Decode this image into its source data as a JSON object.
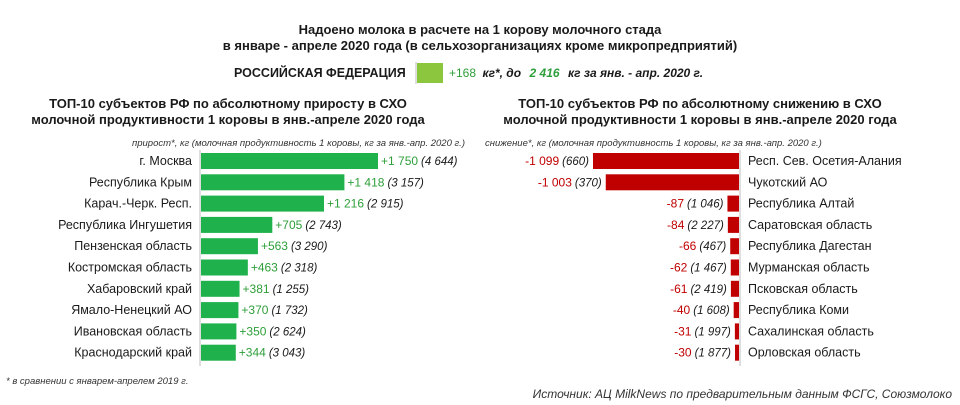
{
  "title_line1": "Надоено молока в расчете на 1 корову молочного стада",
  "title_line2": "в январе - апреле 2020 года (в сельхозорганизациях кроме микропредприятий)",
  "federation": {
    "label": "РОССИЙСКАЯ ФЕДЕРАЦИЯ",
    "growth": "+168",
    "growth_unit": "кг*, до",
    "total": "2 416",
    "total_suffix": "кг за янв. - апр. 2020 г.",
    "color": "#8cc63f"
  },
  "left_title_line1": "ТОП-10 субъектов РФ по абсолютному приросту в СХО",
  "left_title_line2": "молочной продуктивности 1 коровы в янв.-апреле 2020 года",
  "left_note": "прирост*, кг (молочная продуктивность 1 коровы, кг за янв.-апр. 2020 г.)",
  "right_title_line1": "ТОП-10 субъектов РФ по абсолютному снижению в СХО",
  "right_title_line2": "молочной продуктивности 1 коровы в янв.-апреле 2020 года",
  "right_note": "снижение*, кг (молочная продуктивность 1 коровы, кг за янв.-апр. 2020 г.)",
  "footnote": "* в сравнении с январем-апрелем 2019 г.",
  "source": "Источник: АЦ MilkNews по предварительным данным ФСГС, Союзмолоко",
  "chart_data": [
    {
      "type": "bar",
      "orientation": "horizontal",
      "color": "#1fb14b",
      "categories": [
        "г. Москва",
        "Республика Крым",
        "Карач.-Черк. Респ.",
        "Республика Ингушетия",
        "Пензенская область",
        "Костромская область",
        "Хабаровский край",
        "Ямало-Ненецкий АО",
        "Ивановская область",
        "Краснодарский край"
      ],
      "values": [
        1750,
        1418,
        1216,
        705,
        563,
        463,
        381,
        370,
        350,
        344
      ],
      "value_labels": [
        "+1 750",
        "+1 418",
        "+1 216",
        "+705",
        "+563",
        "+463",
        "+381",
        "+370",
        "+350",
        "+344"
      ],
      "totals": [
        "(4 644)",
        "(3 157)",
        "(2 915)",
        "(2 743)",
        "(3 290)",
        "(2 318)",
        "(1 255)",
        "(1 732)",
        "(2 624)",
        "(3 043)"
      ]
    },
    {
      "type": "bar",
      "orientation": "horizontal",
      "color": "#c00000",
      "categories": [
        "Респ. Сев. Осетия-Алания",
        "Чукотский АО",
        "Республика Алтай",
        "Саратовская область",
        "Республика Дагестан",
        "Мурманская область",
        "Псковская область",
        "Республика Коми",
        "Сахалинская область",
        "Орловская область"
      ],
      "values": [
        -1099,
        -1003,
        -87,
        -84,
        -66,
        -62,
        -61,
        -40,
        -31,
        -30
      ],
      "value_labels": [
        "-1 099",
        "-1 003",
        "-87",
        "-84",
        "-66",
        "-62",
        "-61",
        "-40",
        "-31",
        "-30"
      ],
      "totals": [
        "(660)",
        "(370)",
        "(1 046)",
        "(2 227)",
        "(467)",
        "(1 467)",
        "(2 419)",
        "(1 608)",
        "(1 997)",
        "(1 877)"
      ]
    }
  ]
}
